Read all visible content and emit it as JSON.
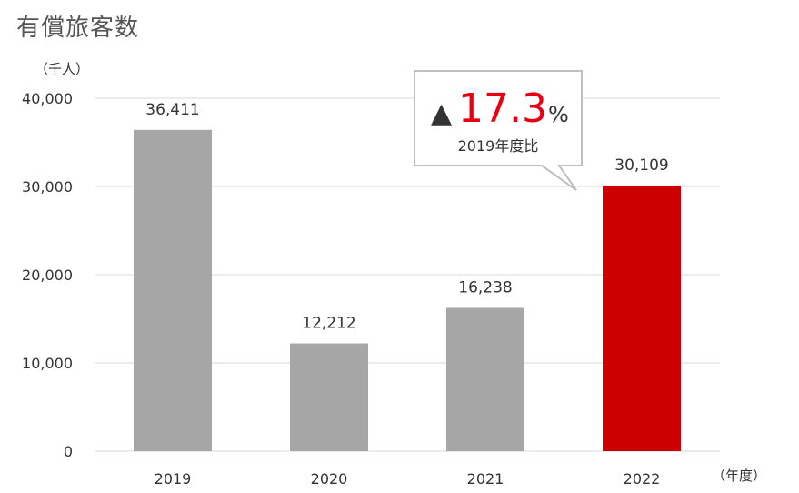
{
  "title": "有償旅客数",
  "chart_data": {
    "type": "bar",
    "title": "有償旅客数",
    "ylabel": "（千人）",
    "xlabel": "（年度）",
    "categories": [
      "2019",
      "2020",
      "2021",
      "2022"
    ],
    "values": [
      36411,
      12212,
      16238,
      30109
    ],
    "data_labels": [
      "36,411",
      "12,212",
      "16,238",
      "30,109"
    ],
    "ylim": [
      0,
      40000
    ],
    "yticks": [
      0,
      10000,
      20000,
      30000,
      40000
    ],
    "ytick_labels": [
      "0",
      "10,000",
      "20,000",
      "30,000",
      "40,000"
    ],
    "grid": true,
    "colors": {
      "default": "#a6a6a6",
      "highlight": "#cc0000",
      "highlight_index": 3,
      "grid": "#d9d9d9"
    },
    "callout": {
      "symbol": "▲",
      "value": "17.3",
      "unit": "%",
      "subtitle": "2019年度比",
      "value_color": "#e60012"
    }
  }
}
